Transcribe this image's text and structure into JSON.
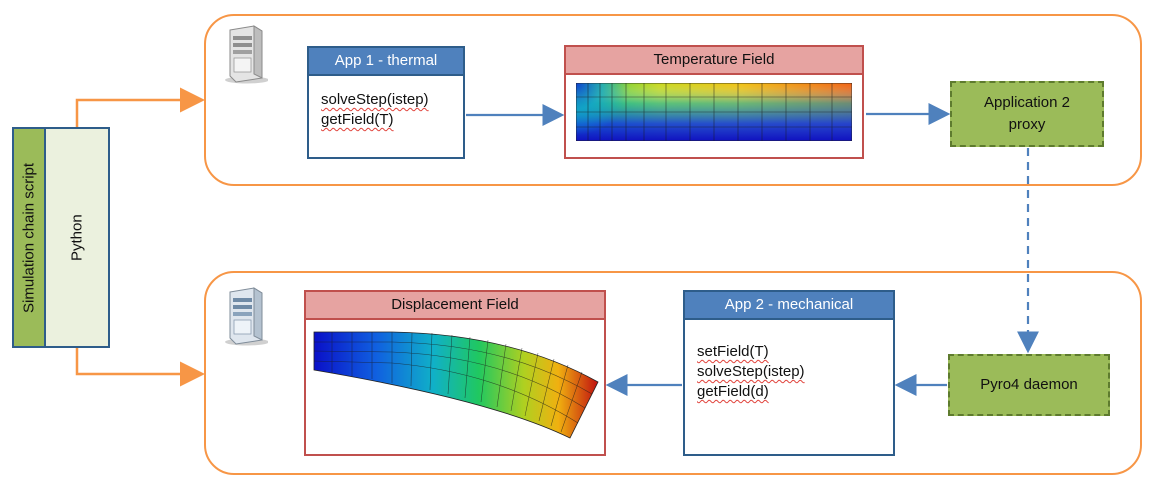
{
  "script_panel": {
    "label": "Simulation chain script",
    "language": "Python"
  },
  "top_node": {
    "app": {
      "title": "App 1 - thermal",
      "lines": [
        "solveStep(istep)",
        "getField(T)"
      ]
    },
    "field": {
      "title": "Temperature Field"
    },
    "proxy": {
      "line1": "Application 2",
      "line2": "proxy"
    }
  },
  "bottom_node": {
    "field": {
      "title": "Displacement Field"
    },
    "app": {
      "title": "App 2 - mechanical",
      "lines": [
        "setField(T)",
        "solveStep(istep)",
        "getField(d)"
      ]
    },
    "daemon": {
      "label": "Pyro4 daemon"
    }
  },
  "colors": {
    "frame": "#f79646",
    "arrow_blue": "#4f81bd",
    "app_header": "#4f81bd",
    "field_header": "#e6a3a1",
    "proxy_fill": "#9bbb59",
    "script_label_fill": "#9bbb59",
    "script_body_fill": "#ebf1de"
  },
  "icons": [
    "server-icon"
  ]
}
